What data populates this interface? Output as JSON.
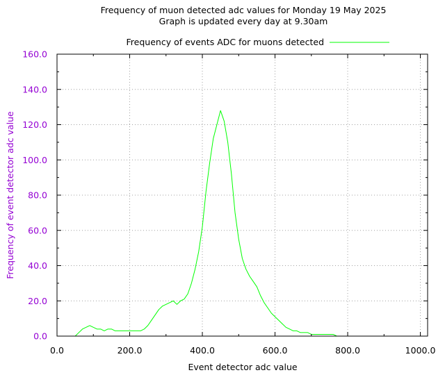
{
  "chart_data": {
    "type": "line",
    "title": "Frequency of muon detected adc values for Monday 19 May 2025",
    "subtitle": "Graph is updated every day at 9.30am",
    "xlabel": "Event detector adc value",
    "ylabel": "Frequency of event detector adc value",
    "xlim": [
      0,
      1020
    ],
    "ylim": [
      0,
      160
    ],
    "x_ticks": [
      "0.0",
      "200.0",
      "400.0",
      "600.0",
      "800.0",
      "1000.0"
    ],
    "y_ticks": [
      "0.0",
      "20.0",
      "40.0",
      "60.0",
      "80.0",
      "100.0",
      "120.0",
      "140.0",
      "160.0"
    ],
    "grid": true,
    "legend_position": "top-center",
    "series": [
      {
        "name": "Frequency of events ADC for muons detected",
        "color": "#00ff00",
        "x_start": 50,
        "x_step": 10,
        "values": [
          0,
          2,
          4,
          5,
          6,
          5,
          4,
          4,
          3,
          4,
          4,
          3,
          3,
          3,
          3,
          3,
          3,
          3,
          3,
          4,
          6,
          9,
          12,
          15,
          17,
          18,
          19,
          20,
          18,
          20,
          21,
          24,
          30,
          38,
          48,
          62,
          82,
          98,
          112,
          120,
          128,
          122,
          110,
          92,
          70,
          55,
          44,
          38,
          34,
          31,
          28,
          23,
          19,
          16,
          13,
          11,
          9,
          7,
          5,
          4,
          3,
          3,
          2,
          2,
          2,
          1,
          1,
          1,
          1,
          1,
          1,
          1,
          0,
          0,
          0,
          0,
          0,
          0
        ]
      }
    ]
  },
  "colors": {
    "accent": "#9400d3",
    "series": "#00ff00",
    "grid": "#a0a0a0"
  }
}
